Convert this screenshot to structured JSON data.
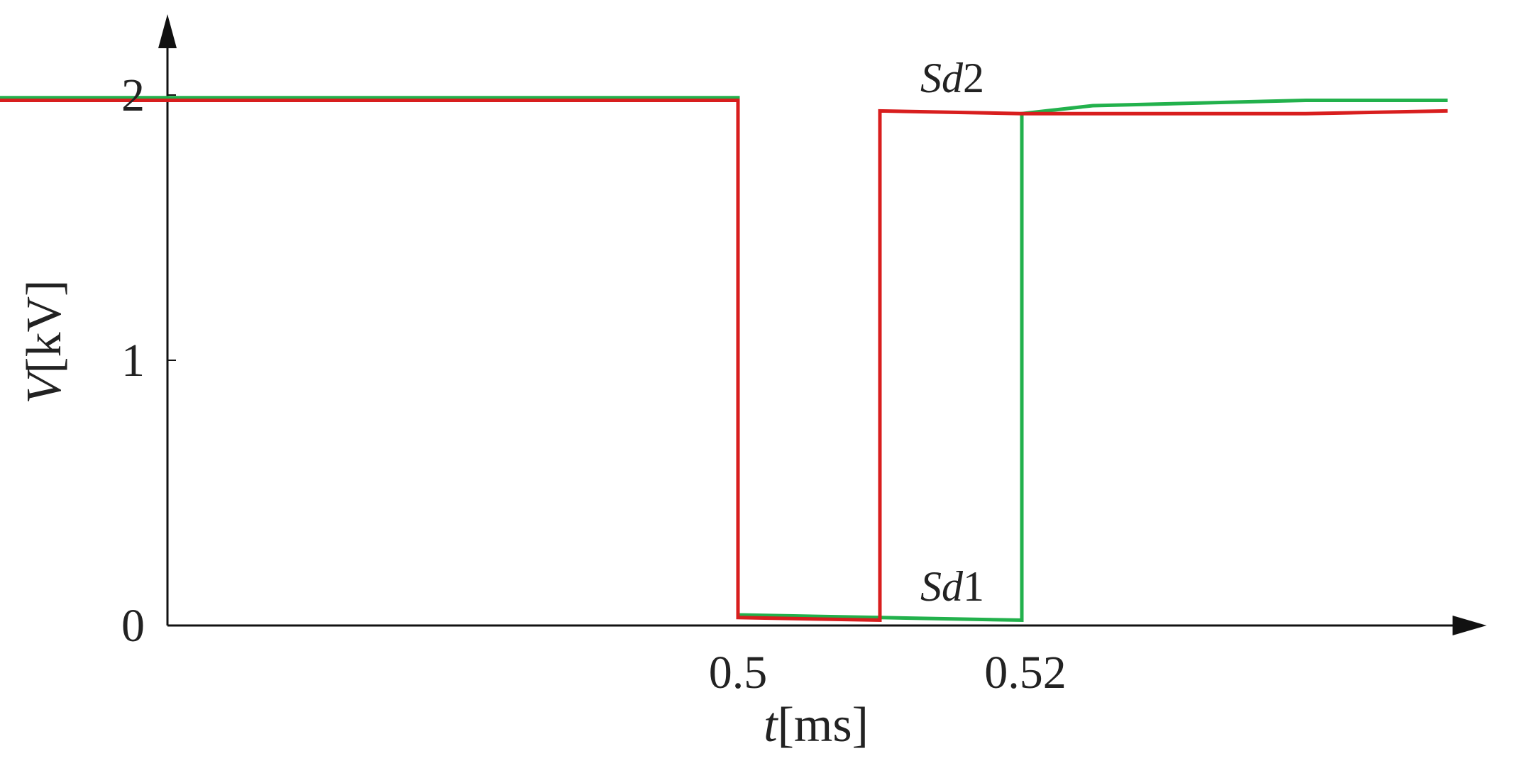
{
  "chart_data": {
    "type": "line",
    "x_axis": {
      "label_var": "t",
      "label_unit": "[ms]",
      "ticks": [
        {
          "value": 0.5,
          "label": "0.5"
        },
        {
          "value": 0.52,
          "label": "0.52"
        }
      ]
    },
    "y_axis": {
      "label_var": "V",
      "label_unit": "[kV]",
      "ticks": [
        {
          "value": 0,
          "label": "0"
        },
        {
          "value": 1,
          "label": "1"
        },
        {
          "value": 2,
          "label": "2"
        }
      ],
      "ylim": [
        0,
        2
      ]
    },
    "series": [
      {
        "name_var": "Sd",
        "name_num": "1",
        "color": "#22b14c",
        "points": [
          [
            0.431,
            1.99
          ],
          [
            0.5,
            1.99
          ],
          [
            0.5,
            0.04
          ],
          [
            0.51,
            0.03
          ],
          [
            0.52,
            0.02
          ],
          [
            0.52,
            1.93
          ],
          [
            0.525,
            1.96
          ],
          [
            0.54,
            1.98
          ],
          [
            0.55,
            1.98
          ]
        ]
      },
      {
        "name_var": "Sd",
        "name_num": "2",
        "color": "#d81e1e",
        "points": [
          [
            0.431,
            1.98
          ],
          [
            0.5,
            1.98
          ],
          [
            0.5,
            0.03
          ],
          [
            0.51,
            0.02
          ],
          [
            0.51,
            1.94
          ],
          [
            0.52,
            1.93
          ],
          [
            0.54,
            1.93
          ],
          [
            0.55,
            1.94
          ]
        ]
      }
    ],
    "grid": false,
    "legend": "inline labels"
  }
}
